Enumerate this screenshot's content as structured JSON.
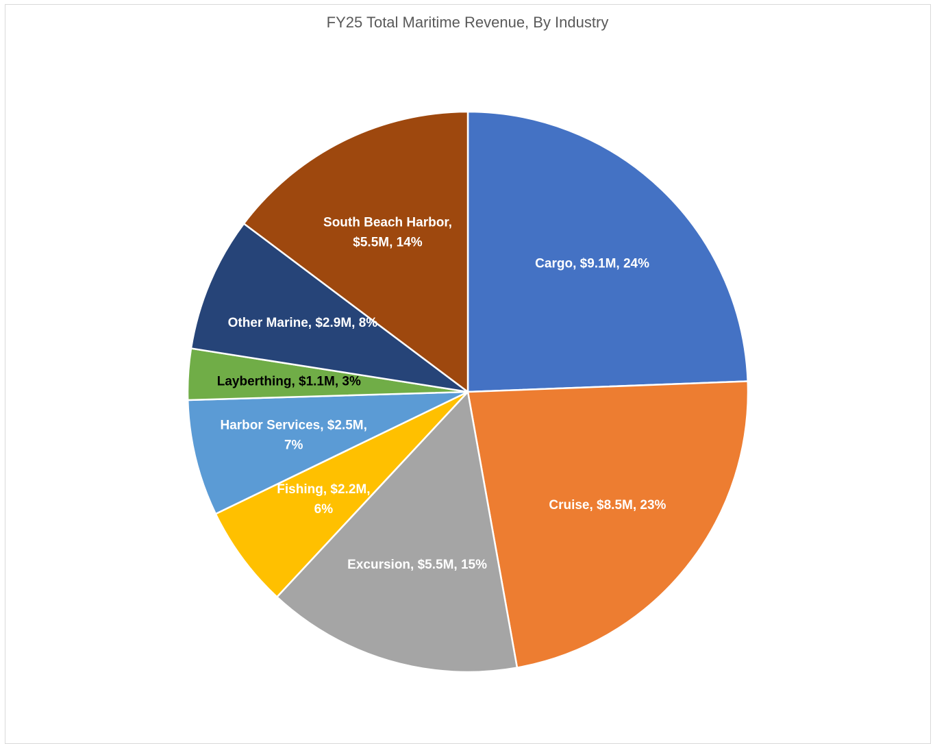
{
  "chart_data": {
    "type": "pie",
    "title": "FY25 Total Maritime Revenue, By Industry",
    "slices": [
      {
        "name": "Cargo",
        "value": 9.1,
        "percent": 24,
        "color": "#4472C4",
        "label_lines": [
          "Cargo, $9.1M, 24%"
        ],
        "label_color": "#ffffff"
      },
      {
        "name": "Cruise",
        "value": 8.5,
        "percent": 23,
        "color": "#ED7D31",
        "label_lines": [
          "Cruise, $8.5M, 23%"
        ],
        "label_color": "#ffffff"
      },
      {
        "name": "Excursion",
        "value": 5.5,
        "percent": 15,
        "color": "#A5A5A5",
        "label_lines": [
          "Excursion,  $5.5M, 15%"
        ],
        "label_color": "#ffffff"
      },
      {
        "name": "Fishing",
        "value": 2.2,
        "percent": 6,
        "color": "#FFC000",
        "label_lines": [
          "Fishing,  $2.2M,",
          "6%"
        ],
        "label_color": "#ffffff"
      },
      {
        "name": "Harbor Services",
        "value": 2.5,
        "percent": 7,
        "color": "#5B9BD5",
        "label_lines": [
          "Harbor Services, $2.5M,",
          "7%"
        ],
        "label_color": "#ffffff"
      },
      {
        "name": "Layberthing",
        "value": 1.1,
        "percent": 3,
        "color": "#70AD47",
        "label_lines": [
          "Layberthing, $1.1M, 3%"
        ],
        "label_color": "#000000"
      },
      {
        "name": "Other Marine",
        "value": 2.9,
        "percent": 8,
        "color": "#264478",
        "label_lines": [
          "Other Marine, $2.9M, 8%"
        ],
        "label_color": "#ffffff"
      },
      {
        "name": "South Beach Harbor",
        "value": 5.5,
        "percent": 14,
        "color": "#9E480E",
        "label_lines": [
          "South Beach Harbor,",
          "$5.5M, 14%"
        ],
        "label_color": "#ffffff"
      }
    ]
  }
}
